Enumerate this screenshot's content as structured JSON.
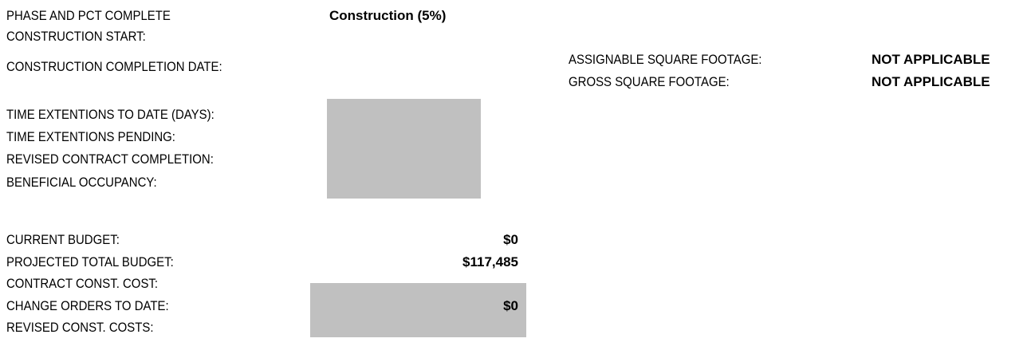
{
  "project_info": {
    "phase": {
      "label": "PHASE AND PCT COMPLETE",
      "value": "Construction  (5%)"
    },
    "schedule": [
      {
        "label": "CONSTRUCTION START:"
      },
      {
        "label": "CONSTRUCTION COMPLETION DATE:"
      }
    ],
    "extensions": [
      {
        "label": "TIME EXTENTIONS TO DATE (DAYS):"
      },
      {
        "label": "TIME EXTENTIONS PENDING:"
      },
      {
        "label": "REVISED CONTRACT COMPLETION:"
      },
      {
        "label": "BENEFICIAL OCCUPANCY:"
      }
    ],
    "budget": [
      {
        "label": "CURRENT BUDGET:",
        "value": "$0"
      },
      {
        "label": "PROJECTED TOTAL BUDGET:",
        "value": "$117,485"
      },
      {
        "label": "CONTRACT CONST. COST:"
      },
      {
        "label": "CHANGE ORDERS TO DATE:",
        "value": "$0"
      },
      {
        "label": "REVISED CONST. COSTS:"
      }
    ],
    "footage": [
      {
        "label": "ASSIGNABLE SQUARE FOOTAGE:",
        "value": "NOT APPLICABLE"
      },
      {
        "label": "GROSS SQUARE FOOTAGE:",
        "value": "NOT APPLICABLE"
      }
    ]
  }
}
